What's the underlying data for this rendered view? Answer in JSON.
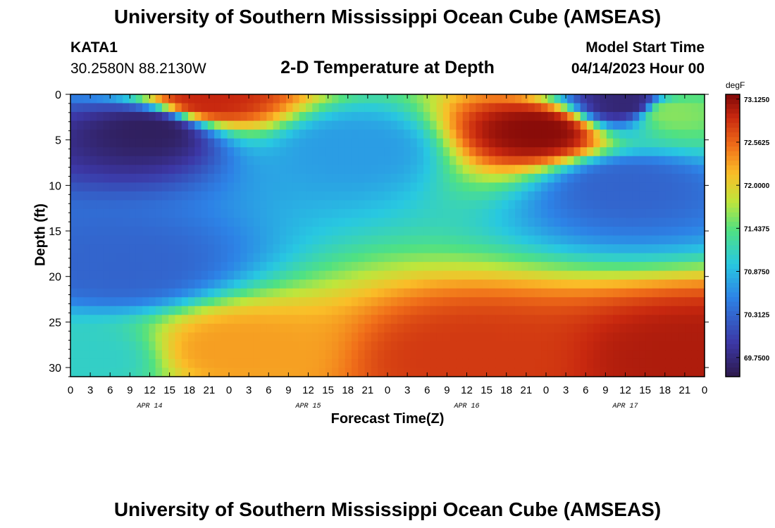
{
  "header": {
    "title": "University of Southern Mississippi Ocean Cube (AMSEAS)",
    "station_name": "KATA1",
    "coordinates": "30.2580N  88.2130W",
    "subtitle": "2-D Temperature at Depth",
    "model_start_label": "Model Start Time",
    "model_start_value": "04/14/2023 Hour 00"
  },
  "footer": {
    "title_repeat": "University of Southern Mississippi Ocean Cube (AMSEAS)"
  },
  "chart_data": {
    "type": "heatmap",
    "title": "2-D Temperature at Depth",
    "xlabel": "Forecast Time(Z)",
    "ylabel": "Depth (ft)",
    "x_hours_range": [
      0,
      96
    ],
    "y_range": [
      0,
      31
    ],
    "x_tick_hours": [
      0,
      3,
      6,
      9,
      12,
      15,
      18,
      21,
      24,
      27,
      30,
      33,
      36,
      39,
      42,
      45,
      48,
      51,
      54,
      57,
      60,
      63,
      66,
      69,
      72,
      75,
      78,
      81,
      84,
      87,
      90,
      93,
      96
    ],
    "x_tick_labels": [
      "0",
      "3",
      "6",
      "9",
      "12",
      "15",
      "18",
      "21",
      "0",
      "3",
      "6",
      "9",
      "12",
      "15",
      "18",
      "21",
      "0",
      "3",
      "6",
      "9",
      "12",
      "15",
      "18",
      "21",
      "0",
      "3",
      "6",
      "9",
      "12",
      "15",
      "18",
      "21",
      "0"
    ],
    "date_labels": [
      {
        "text": "APR 14",
        "hour": 12
      },
      {
        "text": "APR 15",
        "hour": 36
      },
      {
        "text": "APR 16",
        "hour": 60
      },
      {
        "text": "APR 17",
        "hour": 84
      }
    ],
    "y_ticks": [
      0,
      5,
      10,
      15,
      20,
      25,
      30
    ],
    "y_tick_labels": [
      "0",
      "5",
      "10",
      "15",
      "20",
      "25",
      "30"
    ],
    "colorbar": {
      "unit": "degF",
      "min": 69.5,
      "max": 73.1875,
      "tick_values": [
        73.125,
        72.5625,
        72.0,
        71.4375,
        70.875,
        70.3125,
        69.75
      ],
      "tick_labels": [
        "73.1250",
        "72.5625",
        "72.0000",
        "71.4375",
        "70.8750",
        "70.3125",
        "69.7500"
      ]
    },
    "field_features_degF": [
      {
        "hour": 12,
        "depth": 4,
        "value": 69.6,
        "note": "cold core"
      },
      {
        "hour": 21,
        "depth": 0.5,
        "value": 72.9,
        "note": "warm surface patch"
      },
      {
        "hour": 43,
        "depth": 6,
        "value": 70.7
      },
      {
        "hour": 71,
        "depth": 4,
        "value": 73.15,
        "note": "warm core"
      },
      {
        "hour": 84,
        "depth": 1,
        "value": 69.7,
        "note": "cold surface"
      },
      {
        "hour": 84,
        "depth": 10,
        "value": 70.3
      },
      {
        "hour": 91,
        "depth": 2,
        "value": 71.6
      },
      {
        "hour": 25,
        "depth": 28,
        "value": 72.3
      },
      {
        "hour": 60,
        "depth": 29,
        "value": 72.8
      },
      {
        "hour": 94,
        "depth": 29,
        "value": 73.0
      },
      {
        "hour": 2,
        "depth": 29,
        "value": 71.1
      },
      {
        "hour": 8,
        "depth": 19,
        "value": 70.3
      }
    ]
  }
}
